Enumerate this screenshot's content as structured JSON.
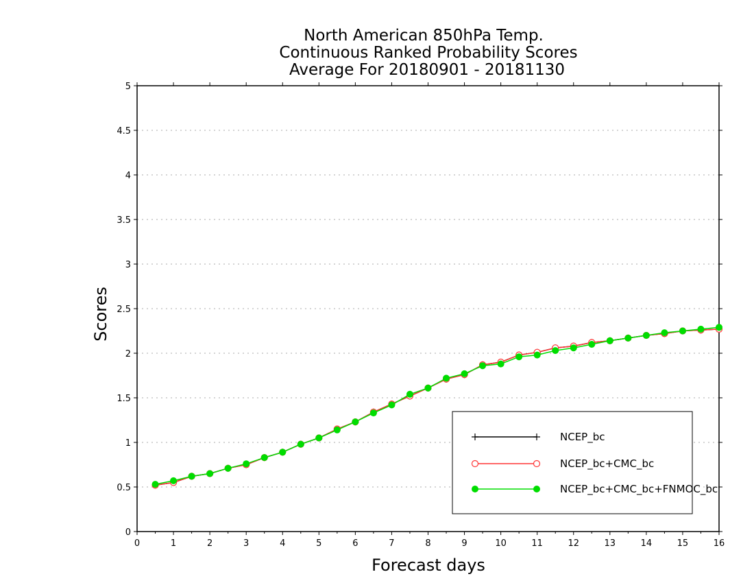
{
  "chart_data": {
    "type": "line",
    "title": [
      "North American 850hPa Temp.",
      "Continuous Ranked Probability Scores",
      "Average For 20180901 - 20181130"
    ],
    "xlabel": "Forecast days",
    "ylabel": "Scores",
    "xlim": [
      0,
      16
    ],
    "ylim": [
      0,
      5
    ],
    "x_ticks": [
      "0",
      "1",
      "2",
      "3",
      "4",
      "5",
      "6",
      "7",
      "8",
      "9",
      "10",
      "11",
      "12",
      "13",
      "14",
      "15",
      "16"
    ],
    "y_ticks": [
      "0",
      "0.5",
      "1",
      "1.5",
      "2",
      "2.5",
      "3",
      "3.5",
      "4",
      "4.5",
      "5"
    ],
    "grid": "horizontal dotted",
    "legend_position": "bottom-right",
    "x": [
      0.5,
      1,
      1.5,
      2,
      2.5,
      3,
      3.5,
      4,
      4.5,
      5,
      5.5,
      6,
      6.5,
      7,
      7.5,
      8,
      8.5,
      9,
      9.5,
      10,
      10.5,
      11,
      11.5,
      12,
      12.5,
      13,
      13.5,
      14,
      14.5,
      15,
      15.5,
      16
    ],
    "series": [
      {
        "name": "NCEP_bc",
        "color": "#000000",
        "marker": "plus",
        "values": [
          0.52,
          0.55,
          0.62,
          0.65,
          0.71,
          0.75,
          0.83,
          0.89,
          0.98,
          1.05,
          1.15,
          1.23,
          1.34,
          1.43,
          1.52,
          1.61,
          1.71,
          1.76,
          1.87,
          1.9,
          1.98,
          2.01,
          2.06,
          2.08,
          2.12,
          2.14,
          2.17,
          2.2,
          2.22,
          2.25,
          2.26,
          2.27
        ]
      },
      {
        "name": "NCEP_bc+CMC_bc",
        "color": "#ff3333",
        "marker": "open-circle",
        "values": [
          0.52,
          0.55,
          0.62,
          0.65,
          0.71,
          0.75,
          0.83,
          0.89,
          0.98,
          1.05,
          1.15,
          1.23,
          1.34,
          1.43,
          1.52,
          1.61,
          1.71,
          1.76,
          1.87,
          1.9,
          1.98,
          2.01,
          2.06,
          2.08,
          2.12,
          2.14,
          2.17,
          2.2,
          2.22,
          2.25,
          2.26,
          2.27
        ]
      },
      {
        "name": "NCEP_bc+CMC_bc+FNMOC_bc",
        "color": "#00dd00",
        "marker": "filled-circle",
        "values": [
          0.53,
          0.57,
          0.62,
          0.65,
          0.71,
          0.76,
          0.83,
          0.89,
          0.98,
          1.05,
          1.14,
          1.23,
          1.33,
          1.42,
          1.54,
          1.61,
          1.72,
          1.77,
          1.86,
          1.88,
          1.96,
          1.98,
          2.03,
          2.06,
          2.1,
          2.14,
          2.17,
          2.2,
          2.23,
          2.25,
          2.27,
          2.29
        ]
      }
    ]
  }
}
